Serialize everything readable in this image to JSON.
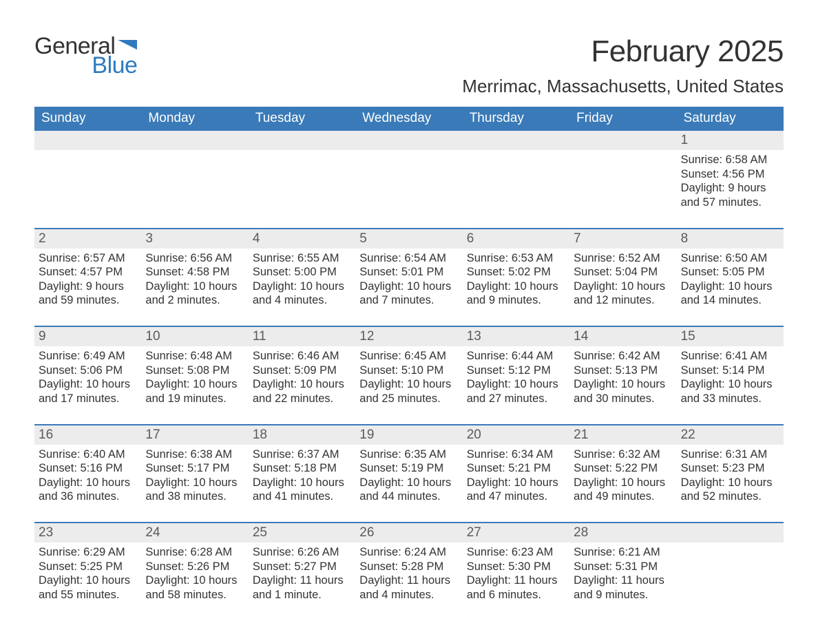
{
  "brand": {
    "line1": "General",
    "line2": "Blue",
    "flag_color": "#2f7abf"
  },
  "title": "February 2025",
  "location": "Merrimac, Massachusetts, United States",
  "colors": {
    "header_bg": "#3a7ab8",
    "header_text": "#ffffff",
    "daynum_bg": "#ececec",
    "daynum_text": "#5a5a5a",
    "body_text": "#333333",
    "accent": "#2f7abf",
    "page_bg": "#ffffff",
    "week_border": "#3a7ab8"
  },
  "dow": [
    "Sunday",
    "Monday",
    "Tuesday",
    "Wednesday",
    "Thursday",
    "Friday",
    "Saturday"
  ],
  "weeks": [
    [
      {
        "n": "",
        "t": ""
      },
      {
        "n": "",
        "t": ""
      },
      {
        "n": "",
        "t": ""
      },
      {
        "n": "",
        "t": ""
      },
      {
        "n": "",
        "t": ""
      },
      {
        "n": "",
        "t": ""
      },
      {
        "n": "1",
        "t": "Sunrise: 6:58 AM\nSunset: 4:56 PM\nDaylight: 9 hours and 57 minutes."
      }
    ],
    [
      {
        "n": "2",
        "t": "Sunrise: 6:57 AM\nSunset: 4:57 PM\nDaylight: 9 hours and 59 minutes."
      },
      {
        "n": "3",
        "t": "Sunrise: 6:56 AM\nSunset: 4:58 PM\nDaylight: 10 hours and 2 minutes."
      },
      {
        "n": "4",
        "t": "Sunrise: 6:55 AM\nSunset: 5:00 PM\nDaylight: 10 hours and 4 minutes."
      },
      {
        "n": "5",
        "t": "Sunrise: 6:54 AM\nSunset: 5:01 PM\nDaylight: 10 hours and 7 minutes."
      },
      {
        "n": "6",
        "t": "Sunrise: 6:53 AM\nSunset: 5:02 PM\nDaylight: 10 hours and 9 minutes."
      },
      {
        "n": "7",
        "t": "Sunrise: 6:52 AM\nSunset: 5:04 PM\nDaylight: 10 hours and 12 minutes."
      },
      {
        "n": "8",
        "t": "Sunrise: 6:50 AM\nSunset: 5:05 PM\nDaylight: 10 hours and 14 minutes."
      }
    ],
    [
      {
        "n": "9",
        "t": "Sunrise: 6:49 AM\nSunset: 5:06 PM\nDaylight: 10 hours and 17 minutes."
      },
      {
        "n": "10",
        "t": "Sunrise: 6:48 AM\nSunset: 5:08 PM\nDaylight: 10 hours and 19 minutes."
      },
      {
        "n": "11",
        "t": "Sunrise: 6:46 AM\nSunset: 5:09 PM\nDaylight: 10 hours and 22 minutes."
      },
      {
        "n": "12",
        "t": "Sunrise: 6:45 AM\nSunset: 5:10 PM\nDaylight: 10 hours and 25 minutes."
      },
      {
        "n": "13",
        "t": "Sunrise: 6:44 AM\nSunset: 5:12 PM\nDaylight: 10 hours and 27 minutes."
      },
      {
        "n": "14",
        "t": "Sunrise: 6:42 AM\nSunset: 5:13 PM\nDaylight: 10 hours and 30 minutes."
      },
      {
        "n": "15",
        "t": "Sunrise: 6:41 AM\nSunset: 5:14 PM\nDaylight: 10 hours and 33 minutes."
      }
    ],
    [
      {
        "n": "16",
        "t": "Sunrise: 6:40 AM\nSunset: 5:16 PM\nDaylight: 10 hours and 36 minutes."
      },
      {
        "n": "17",
        "t": "Sunrise: 6:38 AM\nSunset: 5:17 PM\nDaylight: 10 hours and 38 minutes."
      },
      {
        "n": "18",
        "t": "Sunrise: 6:37 AM\nSunset: 5:18 PM\nDaylight: 10 hours and 41 minutes."
      },
      {
        "n": "19",
        "t": "Sunrise: 6:35 AM\nSunset: 5:19 PM\nDaylight: 10 hours and 44 minutes."
      },
      {
        "n": "20",
        "t": "Sunrise: 6:34 AM\nSunset: 5:21 PM\nDaylight: 10 hours and 47 minutes."
      },
      {
        "n": "21",
        "t": "Sunrise: 6:32 AM\nSunset: 5:22 PM\nDaylight: 10 hours and 49 minutes."
      },
      {
        "n": "22",
        "t": "Sunrise: 6:31 AM\nSunset: 5:23 PM\nDaylight: 10 hours and 52 minutes."
      }
    ],
    [
      {
        "n": "23",
        "t": "Sunrise: 6:29 AM\nSunset: 5:25 PM\nDaylight: 10 hours and 55 minutes."
      },
      {
        "n": "24",
        "t": "Sunrise: 6:28 AM\nSunset: 5:26 PM\nDaylight: 10 hours and 58 minutes."
      },
      {
        "n": "25",
        "t": "Sunrise: 6:26 AM\nSunset: 5:27 PM\nDaylight: 11 hours and 1 minute."
      },
      {
        "n": "26",
        "t": "Sunrise: 6:24 AM\nSunset: 5:28 PM\nDaylight: 11 hours and 4 minutes."
      },
      {
        "n": "27",
        "t": "Sunrise: 6:23 AM\nSunset: 5:30 PM\nDaylight: 11 hours and 6 minutes."
      },
      {
        "n": "28",
        "t": "Sunrise: 6:21 AM\nSunset: 5:31 PM\nDaylight: 11 hours and 9 minutes."
      },
      {
        "n": "",
        "t": ""
      }
    ]
  ]
}
